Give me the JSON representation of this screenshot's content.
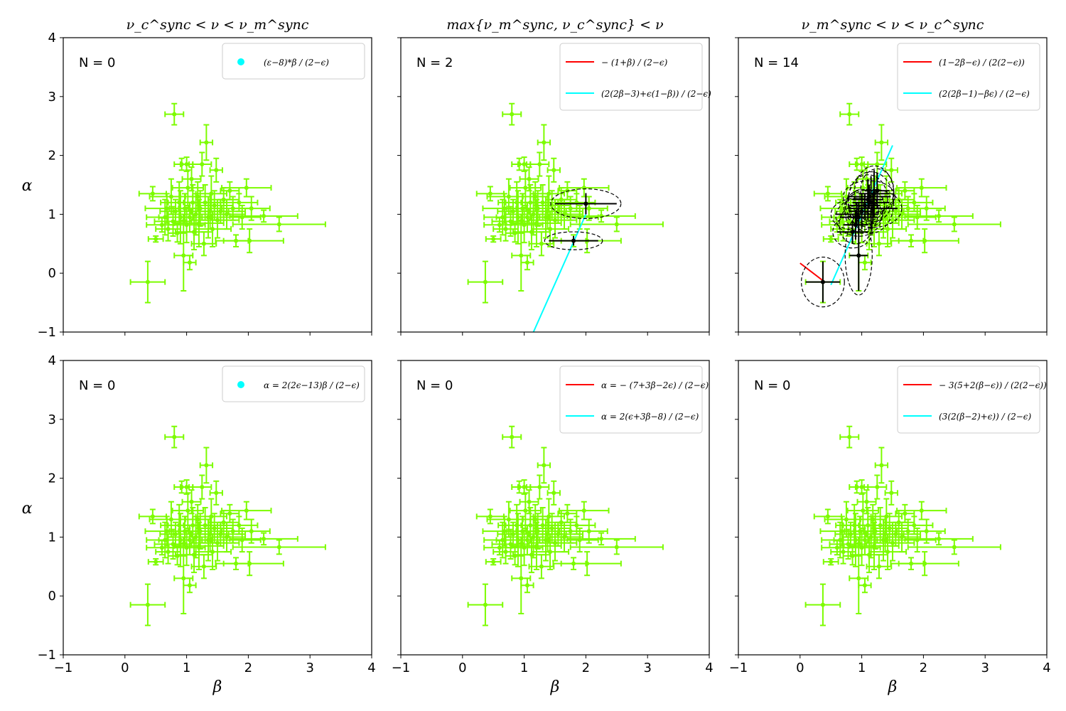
{
  "colors": {
    "points": "#7cfc00",
    "red_line": "#ff0000",
    "cyan_line": "#00ffff",
    "selected": "#000000",
    "frame": "#000000"
  },
  "axes": {
    "xlim": [
      -1,
      4
    ],
    "ylim": [
      -1,
      4
    ],
    "xticks": [
      "−1",
      "0",
      "1",
      "2",
      "3",
      "4"
    ],
    "yticks": [
      "−1",
      "0",
      "1",
      "2",
      "3",
      "4"
    ],
    "xlabel": "β",
    "ylabel": "α"
  },
  "chart_data": {
    "type": "scatter",
    "points": [
      {
        "x": 0.37,
        "y": -0.15,
        "xerr": 0.28,
        "yerr": 0.35
      },
      {
        "x": 0.45,
        "y": 1.35,
        "xerr": 0.22,
        "yerr": 0.12
      },
      {
        "x": 0.5,
        "y": 0.58,
        "xerr": 0.12,
        "yerr": 0.05
      },
      {
        "x": 0.6,
        "y": 0.82,
        "xerr": 0.25,
        "yerr": 0.12
      },
      {
        "x": 0.65,
        "y": 0.95,
        "xerr": 0.3,
        "yerr": 0.3
      },
      {
        "x": 0.68,
        "y": 1.1,
        "xerr": 0.35,
        "yerr": 0.25
      },
      {
        "x": 0.7,
        "y": 0.75,
        "xerr": 0.2,
        "yerr": 0.2
      },
      {
        "x": 0.75,
        "y": 1.3,
        "xerr": 0.35,
        "yerr": 0.3
      },
      {
        "x": 0.78,
        "y": 0.88,
        "xerr": 0.3,
        "yerr": 0.25
      },
      {
        "x": 0.8,
        "y": 2.7,
        "xerr": 0.15,
        "yerr": 0.18
      },
      {
        "x": 0.82,
        "y": 1.05,
        "xerr": 0.25,
        "yerr": 0.2
      },
      {
        "x": 0.85,
        "y": 0.68,
        "xerr": 0.15,
        "yerr": 0.15
      },
      {
        "x": 0.88,
        "y": 1.2,
        "xerr": 0.3,
        "yerr": 0.35
      },
      {
        "x": 0.9,
        "y": 0.95,
        "xerr": 0.35,
        "yerr": 0.45
      },
      {
        "x": 0.92,
        "y": 1.85,
        "xerr": 0.12,
        "yerr": 0.1
      },
      {
        "x": 0.95,
        "y": 0.3,
        "xerr": 0.15,
        "yerr": 0.6
      },
      {
        "x": 0.97,
        "y": 1.1,
        "xerr": 0.25,
        "yerr": 0.25
      },
      {
        "x": 1.0,
        "y": 0.82,
        "xerr": 0.3,
        "yerr": 0.3
      },
      {
        "x": 1.0,
        "y": 1.85,
        "xerr": 0.1,
        "yerr": 0.12
      },
      {
        "x": 1.02,
        "y": 1.45,
        "xerr": 0.25,
        "yerr": 0.3
      },
      {
        "x": 1.05,
        "y": 0.95,
        "xerr": 0.35,
        "yerr": 0.25
      },
      {
        "x": 1.05,
        "y": 0.18,
        "xerr": 0.1,
        "yerr": 0.12
      },
      {
        "x": 1.08,
        "y": 1.6,
        "xerr": 0.15,
        "yerr": 0.2
      },
      {
        "x": 1.1,
        "y": 1.2,
        "xerr": 0.4,
        "yerr": 0.3
      },
      {
        "x": 1.12,
        "y": 0.7,
        "xerr": 0.3,
        "yerr": 0.3
      },
      {
        "x": 1.15,
        "y": 1.0,
        "xerr": 0.45,
        "yerr": 0.35
      },
      {
        "x": 1.18,
        "y": 1.3,
        "xerr": 0.2,
        "yerr": 0.25
      },
      {
        "x": 1.2,
        "y": 0.85,
        "xerr": 0.4,
        "yerr": 0.4
      },
      {
        "x": 1.22,
        "y": 1.1,
        "xerr": 0.35,
        "yerr": 0.3
      },
      {
        "x": 1.25,
        "y": 1.85,
        "xerr": 0.15,
        "yerr": 0.2
      },
      {
        "x": 1.28,
        "y": 0.5,
        "xerr": 0.2,
        "yerr": 0.2
      },
      {
        "x": 1.3,
        "y": 1.2,
        "xerr": 0.35,
        "yerr": 0.3
      },
      {
        "x": 1.32,
        "y": 2.22,
        "xerr": 0.1,
        "yerr": 0.3
      },
      {
        "x": 1.35,
        "y": 0.95,
        "xerr": 0.4,
        "yerr": 0.35
      },
      {
        "x": 1.38,
        "y": 1.05,
        "xerr": 0.3,
        "yerr": 0.3
      },
      {
        "x": 1.4,
        "y": 1.35,
        "xerr": 0.25,
        "yerr": 0.3
      },
      {
        "x": 1.42,
        "y": 0.75,
        "xerr": 0.3,
        "yerr": 0.3
      },
      {
        "x": 1.45,
        "y": 1.15,
        "xerr": 0.3,
        "yerr": 0.25
      },
      {
        "x": 1.48,
        "y": 1.75,
        "xerr": 0.1,
        "yerr": 0.2
      },
      {
        "x": 1.5,
        "y": 0.9,
        "xerr": 0.35,
        "yerr": 0.3
      },
      {
        "x": 1.55,
        "y": 1.05,
        "xerr": 0.4,
        "yerr": 0.2
      },
      {
        "x": 1.6,
        "y": 1.25,
        "xerr": 0.25,
        "yerr": 0.2
      },
      {
        "x": 1.65,
        "y": 1.0,
        "xerr": 0.3,
        "yerr": 0.25
      },
      {
        "x": 1.7,
        "y": 1.4,
        "xerr": 0.15,
        "yerr": 0.15
      },
      {
        "x": 1.75,
        "y": 1.1,
        "xerr": 0.3,
        "yerr": 0.2
      },
      {
        "x": 1.8,
        "y": 0.55,
        "xerr": 0.2,
        "yerr": 0.1
      },
      {
        "x": 1.85,
        "y": 1.2,
        "xerr": 0.3,
        "yerr": 0.15
      },
      {
        "x": 1.9,
        "y": 0.95,
        "xerr": 0.3,
        "yerr": 0.2
      },
      {
        "x": 1.97,
        "y": 1.45,
        "xerr": 0.4,
        "yerr": 0.15
      },
      {
        "x": 2.02,
        "y": 0.55,
        "xerr": 0.55,
        "yerr": 0.2
      },
      {
        "x": 2.05,
        "y": 1.1,
        "xerr": 0.3,
        "yerr": 0.2
      },
      {
        "x": 2.25,
        "y": 0.97,
        "xerr": 0.55,
        "yerr": 0.1
      },
      {
        "x": 2.5,
        "y": 0.83,
        "xerr": 0.75,
        "yerr": 0.12
      }
    ],
    "panels": [
      {
        "title": "ν_c^sync < ν < ν_m^sync",
        "n_label": "N = 0",
        "legend": [
          {
            "kind": "dot",
            "color": "cyan",
            "label": "(ε−8)*β / (2−ϵ)"
          }
        ],
        "lines": [],
        "selected": []
      },
      {
        "title": "max{ν_m^sync, ν_c^sync} < ν",
        "n_label": "N = 2",
        "legend": [
          {
            "kind": "line",
            "color": "red",
            "label": "− (1+β) / (2−ϵ)"
          },
          {
            "kind": "line",
            "color": "cyan",
            "label": "(2(2β−3)+ϵ(1−β)) / (2−ϵ)"
          }
        ],
        "lines": [
          {
            "color": "cyan",
            "x": [
              1.15,
              2.0
            ],
            "y": [
              -1.0,
              1.0
            ]
          }
        ],
        "selected": [
          {
            "x": 2.0,
            "y": 1.18,
            "xerr": 0.5,
            "yerr": 0.18
          },
          {
            "x": 1.8,
            "y": 0.55,
            "xerr": 0.4,
            "yerr": 0.08
          }
        ]
      },
      {
        "title": "ν_m^sync < ν < ν_c^sync",
        "n_label": "N = 14",
        "legend": [
          {
            "kind": "line",
            "color": "red",
            "label": "(1−2β−ϵ) / (2(2−ϵ))"
          },
          {
            "kind": "line",
            "color": "cyan",
            "label": "(2(2β−1)−βϵ) / (2−ϵ)"
          }
        ],
        "lines": [
          {
            "color": "red",
            "x": [
              0.0,
              0.4
            ],
            "y": [
              0.17,
              -0.15
            ]
          },
          {
            "color": "cyan",
            "x": [
              0.5,
              1.5
            ],
            "y": [
              -0.2,
              2.17
            ]
          }
        ],
        "selected": [
          {
            "x": 0.37,
            "y": -0.15,
            "xerr": 0.28,
            "yerr": 0.35
          },
          {
            "x": 0.95,
            "y": 0.3,
            "xerr": 0.15,
            "yerr": 0.6
          },
          {
            "x": 0.85,
            "y": 0.7,
            "xerr": 0.25,
            "yerr": 0.2
          },
          {
            "x": 0.9,
            "y": 0.82,
            "xerr": 0.2,
            "yerr": 0.25
          },
          {
            "x": 0.95,
            "y": 0.95,
            "xerr": 0.3,
            "yerr": 0.25
          },
          {
            "x": 1.0,
            "y": 1.05,
            "xerr": 0.2,
            "yerr": 0.3
          },
          {
            "x": 0.92,
            "y": 1.0,
            "xerr": 0.35,
            "yerr": 0.2
          },
          {
            "x": 1.05,
            "y": 1.15,
            "xerr": 0.25,
            "yerr": 0.2
          },
          {
            "x": 1.1,
            "y": 1.25,
            "xerr": 0.25,
            "yerr": 0.35
          },
          {
            "x": 1.12,
            "y": 1.3,
            "xerr": 0.35,
            "yerr": 0.2
          },
          {
            "x": 1.15,
            "y": 1.2,
            "xerr": 0.3,
            "yerr": 0.45
          },
          {
            "x": 1.2,
            "y": 1.35,
            "xerr": 0.25,
            "yerr": 0.4
          },
          {
            "x": 1.25,
            "y": 1.4,
            "xerr": 0.2,
            "yerr": 0.3
          },
          {
            "x": 1.18,
            "y": 1.1,
            "xerr": 0.4,
            "yerr": 0.25
          }
        ]
      },
      {
        "title": "",
        "n_label": "N = 0",
        "legend": [
          {
            "kind": "dot",
            "color": "cyan",
            "label": "α = 2(2ϵ−13)β / (2−ϵ)"
          }
        ],
        "lines": [],
        "selected": []
      },
      {
        "title": "",
        "n_label": "N = 0",
        "legend": [
          {
            "kind": "line",
            "color": "red",
            "label": "α = − (7+3β−2ϵ) / (2−ϵ)"
          },
          {
            "kind": "line",
            "color": "cyan",
            "label": "α = 2(ϵ+3β−8) / (2−ϵ)"
          }
        ],
        "lines": [],
        "selected": []
      },
      {
        "title": "",
        "n_label": "N = 0",
        "legend": [
          {
            "kind": "line",
            "color": "red",
            "label": "− 3(5+2(β−ϵ)) / (2(2−ϵ))"
          },
          {
            "kind": "line",
            "color": "cyan",
            "label": "(3(2(β−2)+ϵ)) / (2−ϵ)"
          }
        ],
        "lines": [],
        "selected": []
      }
    ]
  }
}
